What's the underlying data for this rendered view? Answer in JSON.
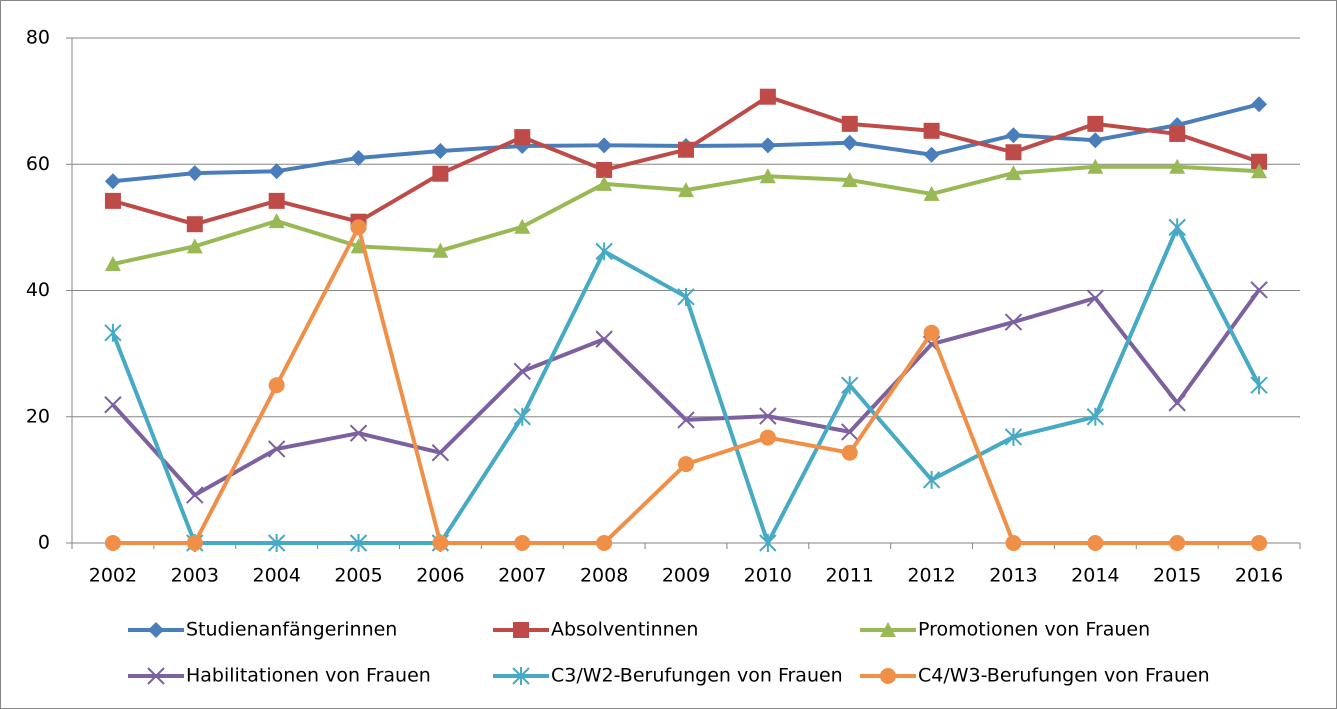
{
  "chart_data": {
    "type": "line",
    "categories": [
      "2002",
      "2003",
      "2004",
      "2005",
      "2006",
      "2007",
      "2008",
      "2009",
      "2010",
      "2011",
      "2012",
      "2013",
      "2014",
      "2015",
      "2016"
    ],
    "ylim": [
      0,
      80
    ],
    "yticks": [
      0,
      20,
      40,
      60,
      80
    ],
    "grid": true,
    "series": [
      {
        "name": "Studienanfängerinnen",
        "color": "#4a7ebb",
        "marker": "diamond",
        "values": [
          57.3,
          58.6,
          58.9,
          61.0,
          62.1,
          62.9,
          63.0,
          62.9,
          63.0,
          63.4,
          61.5,
          64.6,
          63.8,
          66.2,
          69.5
        ]
      },
      {
        "name": "Absolventinnen",
        "color": "#be4b48",
        "marker": "square",
        "values": [
          54.2,
          50.5,
          54.2,
          50.9,
          58.5,
          64.3,
          59.1,
          62.3,
          70.7,
          66.4,
          65.3,
          61.9,
          66.4,
          64.8,
          60.4
        ]
      },
      {
        "name": "Promotionen von Frauen",
        "color": "#98b954",
        "marker": "triangle",
        "values": [
          44.2,
          47.0,
          51.0,
          47.0,
          46.3,
          50.1,
          56.9,
          55.9,
          58.1,
          57.5,
          55.3,
          58.6,
          59.6,
          59.6,
          58.9
        ]
      },
      {
        "name": "Habilitationen von Frauen",
        "color": "#7d60a0",
        "marker": "x",
        "values": [
          21.9,
          7.6,
          14.9,
          17.4,
          14.3,
          27.2,
          32.3,
          19.5,
          20.1,
          17.6,
          31.5,
          35.0,
          38.8,
          22.2,
          40.1
        ]
      },
      {
        "name": "C3/W2-Berufungen von Frauen",
        "color": "#46aac5",
        "marker": "star",
        "values": [
          33.3,
          0,
          0,
          0,
          0,
          20.0,
          46.2,
          39.0,
          0,
          25.0,
          10.0,
          16.8,
          20.0,
          50.0,
          25.0
        ]
      },
      {
        "name": "C4/W3-Berufungen von Frauen",
        "color": "#f09048",
        "marker": "circle",
        "values": [
          0,
          0,
          25.0,
          50.0,
          0,
          0,
          0,
          12.5,
          16.7,
          14.3,
          33.3,
          0,
          0,
          0,
          0
        ]
      }
    ]
  }
}
